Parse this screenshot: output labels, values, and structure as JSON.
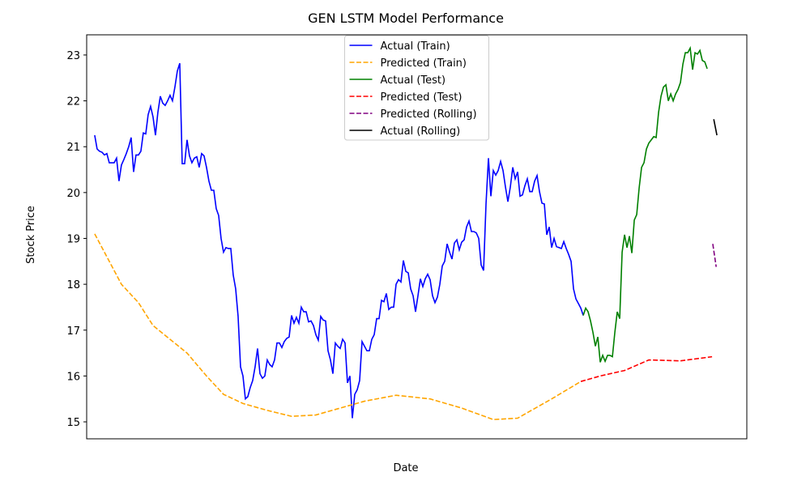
{
  "chart_data": {
    "type": "line",
    "title": "GEN LSTM Model Performance",
    "x_label": "Date",
    "y_label": "Stock Price",
    "xlim": [
      -3.3,
      268.3
    ],
    "ylim": [
      14.63,
      23.44
    ],
    "yticks": [
      15,
      16,
      17,
      18,
      19,
      20,
      21,
      22,
      23
    ],
    "legend": "upper center",
    "series": [
      {
        "name": "Actual (Train)",
        "color": "#0000ff",
        "linestyle": "solid",
        "x": [
          0,
          1,
          2,
          3,
          4,
          5,
          6,
          7,
          8,
          9,
          10,
          11,
          12,
          13,
          14,
          15,
          16,
          17,
          18,
          19,
          20,
          21,
          22,
          23,
          24,
          25,
          26,
          27,
          28,
          29,
          30,
          31,
          32,
          33,
          34,
          35,
          36,
          37,
          38,
          39,
          40,
          41,
          42,
          43,
          44,
          45,
          46,
          47,
          48,
          49,
          50,
          51,
          52,
          53,
          54,
          55,
          56,
          57,
          58,
          59,
          60,
          61,
          62,
          63,
          64,
          65,
          66,
          67,
          68,
          69,
          70,
          71,
          72,
          73,
          74,
          75,
          76,
          77,
          78,
          79,
          80,
          81,
          82,
          83,
          84,
          85,
          86,
          87,
          88,
          89,
          90,
          91,
          92,
          93,
          94,
          95,
          96,
          97,
          98,
          99,
          100,
          101,
          102,
          103,
          104,
          105,
          106,
          107,
          108,
          109,
          110,
          111,
          112,
          113,
          114,
          115,
          116,
          117,
          118,
          119,
          120,
          121,
          122,
          123,
          124,
          125,
          126,
          127,
          128,
          129,
          130,
          131,
          132,
          133,
          134,
          135,
          136,
          137,
          138,
          139,
          140,
          141,
          142,
          143,
          144,
          145,
          146,
          147,
          148,
          149,
          150,
          151,
          152,
          153,
          154,
          155,
          156,
          157,
          158,
          159,
          160,
          161,
          162,
          163,
          164,
          165,
          166,
          167,
          168,
          169,
          170,
          171,
          172,
          173,
          174,
          175,
          176,
          177,
          178,
          179,
          180,
          181,
          182,
          183,
          184,
          185,
          186,
          187,
          188,
          189,
          190,
          191,
          192,
          193,
          194,
          195,
          196,
          197,
          198,
          199,
          200,
          201
        ],
        "values": [
          21.25,
          20.95,
          20.9,
          20.88,
          20.82,
          20.85,
          20.65,
          20.65,
          20.65,
          20.75,
          20.25,
          20.6,
          20.72,
          20.85,
          21.0,
          21.2,
          20.45,
          20.82,
          20.82,
          20.9,
          21.3,
          21.28,
          21.7,
          21.88,
          21.65,
          21.25,
          21.75,
          22.1,
          21.95,
          21.9,
          22.0,
          22.12,
          22.0,
          22.3,
          22.65,
          22.82,
          20.63,
          20.63,
          21.15,
          20.8,
          20.65,
          20.75,
          20.78,
          20.55,
          20.85,
          20.8,
          20.55,
          20.25,
          20.05,
          20.05,
          19.65,
          19.5,
          19.0,
          18.7,
          18.8,
          18.78,
          18.78,
          18.2,
          17.9,
          17.3,
          16.2,
          16.0,
          15.5,
          15.55,
          15.75,
          15.9,
          16.2,
          16.6,
          16.05,
          15.95,
          16.0,
          16.35,
          16.25,
          16.2,
          16.35,
          16.72,
          16.72,
          16.62,
          16.75,
          16.82,
          16.85,
          17.32,
          17.15,
          17.28,
          17.15,
          17.5,
          17.4,
          17.4,
          17.18,
          17.2,
          17.1,
          16.9,
          16.78,
          17.3,
          17.22,
          17.2,
          16.55,
          16.35,
          16.05,
          16.72,
          16.65,
          16.6,
          16.8,
          16.72,
          15.85,
          16.0,
          15.08,
          15.6,
          15.7,
          15.9,
          16.75,
          16.65,
          16.55,
          16.55,
          16.8,
          16.9,
          17.25,
          17.25,
          17.65,
          17.62,
          17.8,
          17.45,
          17.5,
          17.5,
          18.0,
          18.1,
          18.05,
          18.52,
          18.28,
          18.25,
          17.9,
          17.75,
          17.4,
          17.75,
          18.12,
          17.95,
          18.12,
          18.22,
          18.1,
          17.75,
          17.6,
          17.72,
          18.0,
          18.4,
          18.5,
          18.88,
          18.7,
          18.55,
          18.9,
          18.97,
          18.75,
          18.92,
          18.97,
          19.25,
          19.38,
          19.15,
          19.15,
          19.12,
          19.0,
          18.42,
          18.3,
          19.75,
          20.75,
          19.92,
          20.48,
          20.38,
          20.48,
          20.68,
          20.48,
          20.12,
          19.8,
          20.12,
          20.55,
          20.3,
          20.45,
          19.92,
          19.95,
          20.15,
          20.3,
          20.02,
          20.02,
          20.25,
          20.37,
          20.02,
          19.77,
          19.75,
          19.08,
          19.25,
          18.8,
          19.0,
          18.82,
          18.8,
          18.78,
          18.93,
          18.78,
          18.65,
          18.5,
          17.9,
          17.68,
          17.58,
          17.48,
          17.32
        ]
      },
      {
        "name": "Predicted (Train)",
        "color": "#ffa500",
        "linestyle": "dashed",
        "x": [
          0,
          6,
          11,
          18,
          24,
          31,
          38,
          46,
          53,
          61,
          71,
          81,
          91,
          101,
          111,
          124,
          138,
          151,
          164,
          174,
          188,
          200
        ],
        "values": [
          19.1,
          18.5,
          18.0,
          17.6,
          17.1,
          16.8,
          16.5,
          16.0,
          15.6,
          15.4,
          15.25,
          15.12,
          15.15,
          15.3,
          15.45,
          15.58,
          15.5,
          15.3,
          15.05,
          15.08,
          15.5,
          15.88
        ]
      },
      {
        "name": "Actual (Test)",
        "color": "#008000",
        "linestyle": "solid",
        "x": [
          201,
          202,
          203,
          204,
          205,
          206,
          207,
          208,
          209,
          210,
          211,
          212,
          213,
          214,
          215,
          216,
          217,
          218,
          219,
          220,
          221,
          222,
          223,
          224,
          225,
          226,
          227,
          228,
          229,
          230,
          231,
          232,
          233,
          234,
          235,
          236,
          237,
          238,
          239,
          240,
          241,
          242,
          243,
          244,
          245,
          246,
          247,
          248,
          249,
          250,
          251,
          252
        ],
        "values": [
          17.32,
          17.48,
          17.4,
          17.2,
          16.95,
          16.65,
          16.85,
          16.3,
          16.45,
          16.32,
          16.45,
          16.45,
          16.42,
          16.95,
          17.4,
          17.25,
          18.7,
          19.08,
          18.8,
          19.05,
          18.68,
          19.4,
          19.52,
          20.1,
          20.55,
          20.65,
          20.95,
          21.08,
          21.15,
          21.22,
          21.2,
          21.75,
          22.1,
          22.3,
          22.35,
          22.0,
          22.15,
          22.0,
          22.15,
          22.25,
          22.4,
          22.8,
          23.05,
          23.05,
          23.15,
          22.68,
          23.05,
          23.02,
          23.1,
          22.88,
          22.85,
          22.7
        ]
      },
      {
        "name": "Predicted (Test)",
        "color": "#ff0000",
        "linestyle": "dashed",
        "x": [
          200,
          208,
          218,
          228,
          241,
          254
        ],
        "values": [
          15.88,
          16.0,
          16.12,
          16.35,
          16.33,
          16.42
        ]
      },
      {
        "name": "Predicted (Rolling)",
        "color": "#800080",
        "linestyle": "dashed",
        "x": [
          254.3,
          255.7
        ],
        "values": [
          18.88,
          18.38
        ]
      },
      {
        "name": "Actual (Rolling)",
        "color": "#000000",
        "linestyle": "solid",
        "x": [
          254.7,
          256
        ],
        "values": [
          21.6,
          21.25
        ]
      }
    ]
  }
}
